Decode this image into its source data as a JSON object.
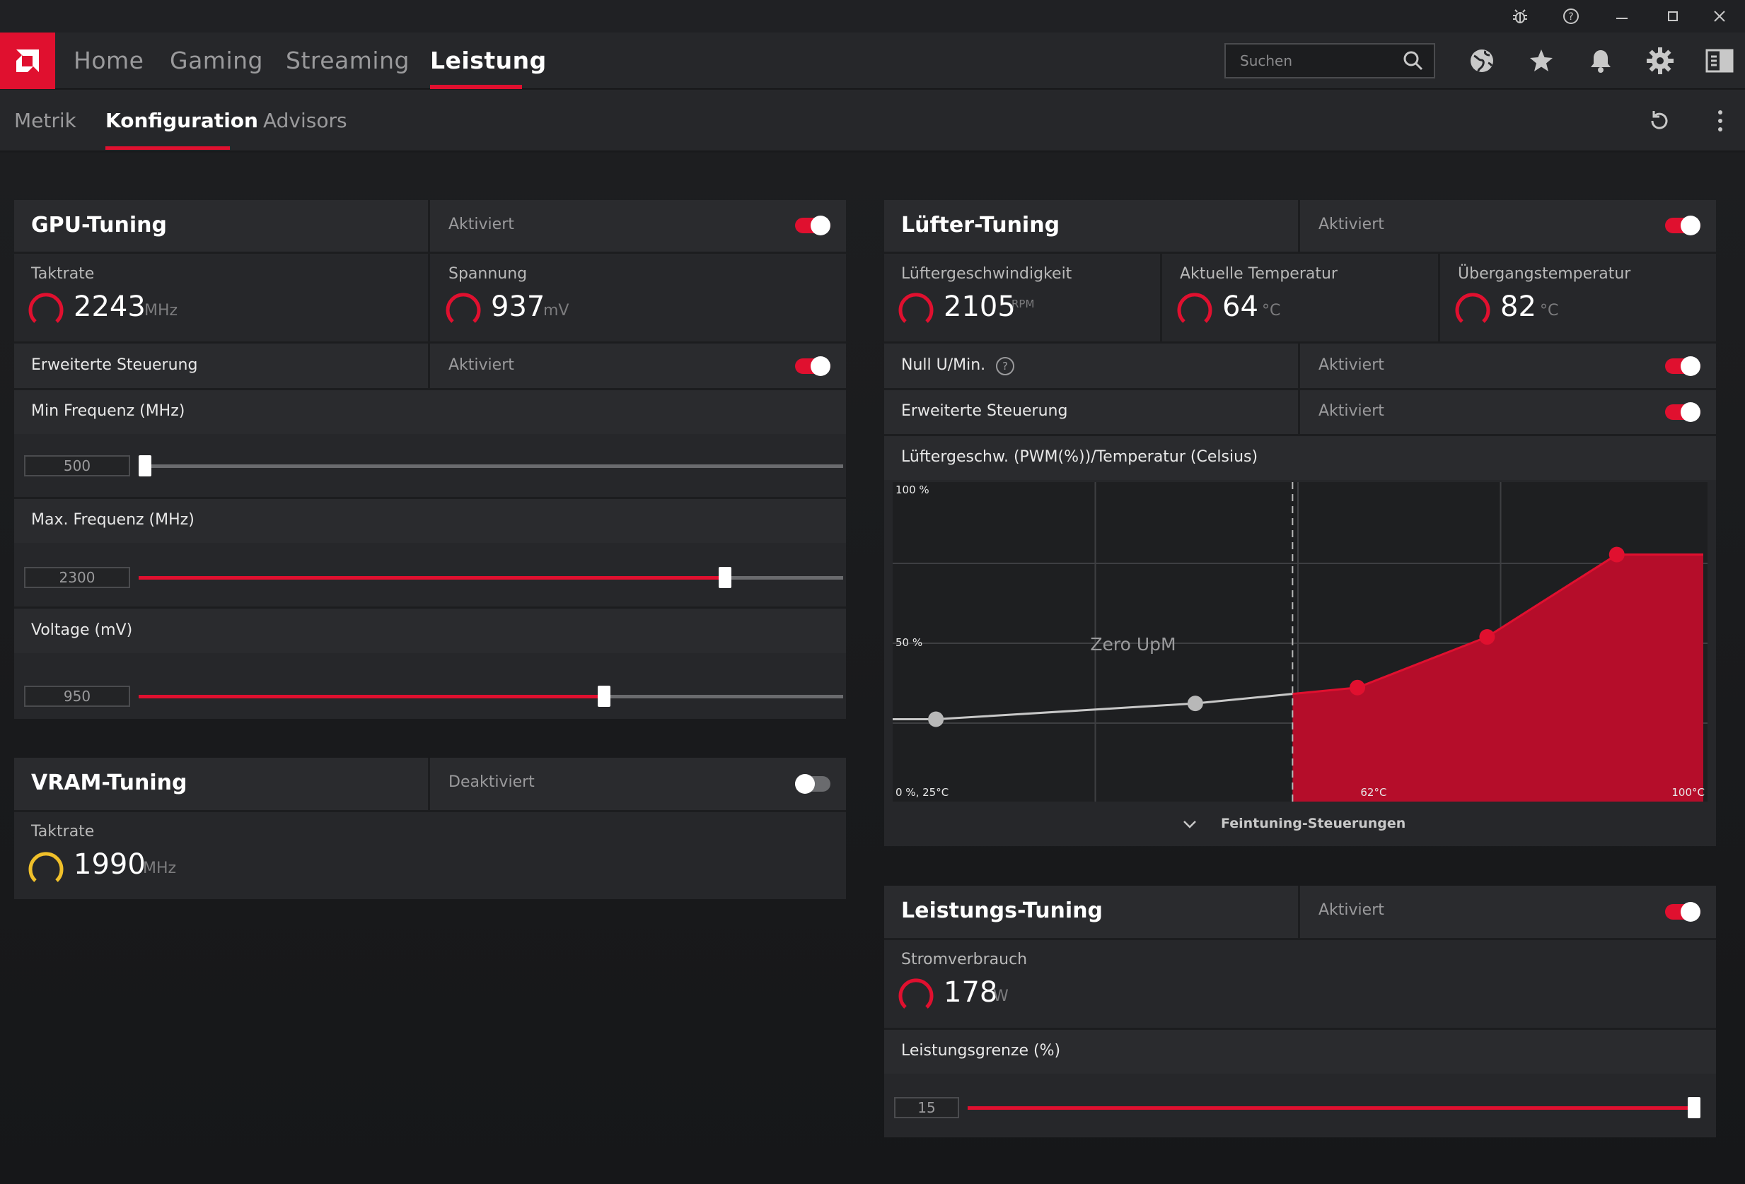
{
  "window": {
    "buttons": [
      "bug",
      "help",
      "minimize",
      "maximize",
      "close"
    ]
  },
  "nav": {
    "tabs": [
      "Home",
      "Gaming",
      "Streaming",
      "Leistung"
    ],
    "active": "Leistung",
    "search_placeholder": "Suchen",
    "icons": [
      "globe-icon",
      "star-icon",
      "bell-icon",
      "gear-icon",
      "sidebar-icon"
    ]
  },
  "subnav": {
    "tabs": [
      "Metrik",
      "Konfiguration",
      "Advisors"
    ],
    "active": "Konfiguration"
  },
  "colors": {
    "accent": "#e0102f",
    "vram_gauge": "#f0c02a"
  },
  "gpu": {
    "title": "GPU-Tuning",
    "status": "Aktiviert",
    "enabled": true,
    "clock_label": "Taktrate",
    "clock_value": "2243",
    "clock_unit": "MHz",
    "voltage_label": "Spannung",
    "voltage_value": "937",
    "voltage_unit": "mV",
    "advanced_label": "Erweiterte Steuerung",
    "advanced_status": "Aktiviert",
    "advanced_enabled": true,
    "min_freq_label": "Min Frequenz (MHz)",
    "min_freq_value": "500",
    "min_freq_fraction": 0.0,
    "max_freq_label": "Max. Frequenz (MHz)",
    "max_freq_value": "2300",
    "max_freq_fraction": 0.85,
    "volt_label": "Voltage (mV)",
    "volt_value": "950",
    "volt_fraction": 0.67
  },
  "vram": {
    "title": "VRAM-Tuning",
    "status": "Deaktiviert",
    "enabled": false,
    "clock_label": "Taktrate",
    "clock_value": "1990",
    "clock_unit": "MHz"
  },
  "fan": {
    "title": "Lüfter-Tuning",
    "status": "Aktiviert",
    "enabled": true,
    "speed_label": "Lüftergeschwindigkeit",
    "speed_value": "2105",
    "speed_unit": "RPM",
    "temp_label": "Aktuelle Temperatur",
    "temp_value": "64",
    "temp_unit": "°C",
    "junction_label": "Übergangstemperatur",
    "junction_value": "82",
    "junction_unit": "°C",
    "zero_rpm_label": "Null U/Min.",
    "zero_rpm_status": "Aktiviert",
    "zero_rpm_enabled": true,
    "advanced_label": "Erweiterte Steuerung",
    "advanced_status": "Aktiviert",
    "advanced_enabled": true,
    "curve_label": "Lüftergeschw. (PWM(%))/Temperatur (Celsius)",
    "fine_tune_label": "Feintuning-Steuerungen"
  },
  "chart_data": {
    "type": "area",
    "x_min": 25,
    "x_max": 100,
    "y_min": 0,
    "y_max": 100,
    "y_ticks": [
      "100 %",
      "50 %"
    ],
    "origin_label": "0 %, 25°C",
    "x_tick_labels": [
      {
        "x": 62,
        "label": "62°C"
      },
      {
        "x": 100,
        "label": "100°C"
      }
    ],
    "zero_rpm_label": "Zero UpM",
    "zero_rpm_threshold": 62,
    "series": [
      {
        "points": [
          {
            "x": 29,
            "y": 26
          },
          {
            "x": 53,
            "y": 31
          },
          {
            "x": 68,
            "y": 36
          },
          {
            "x": 80,
            "y": 52
          },
          {
            "x": 92,
            "y": 78
          },
          {
            "x": 100,
            "y": 78
          }
        ]
      }
    ],
    "grid": true
  },
  "power": {
    "title": "Leistungs-Tuning",
    "status": "Aktiviert",
    "enabled": true,
    "consumption_label": "Stromverbrauch",
    "consumption_value": "178",
    "consumption_unit": "W",
    "limit_label": "Leistungsgrenze (%)",
    "limit_value": "15",
    "limit_fraction": 1.0
  }
}
